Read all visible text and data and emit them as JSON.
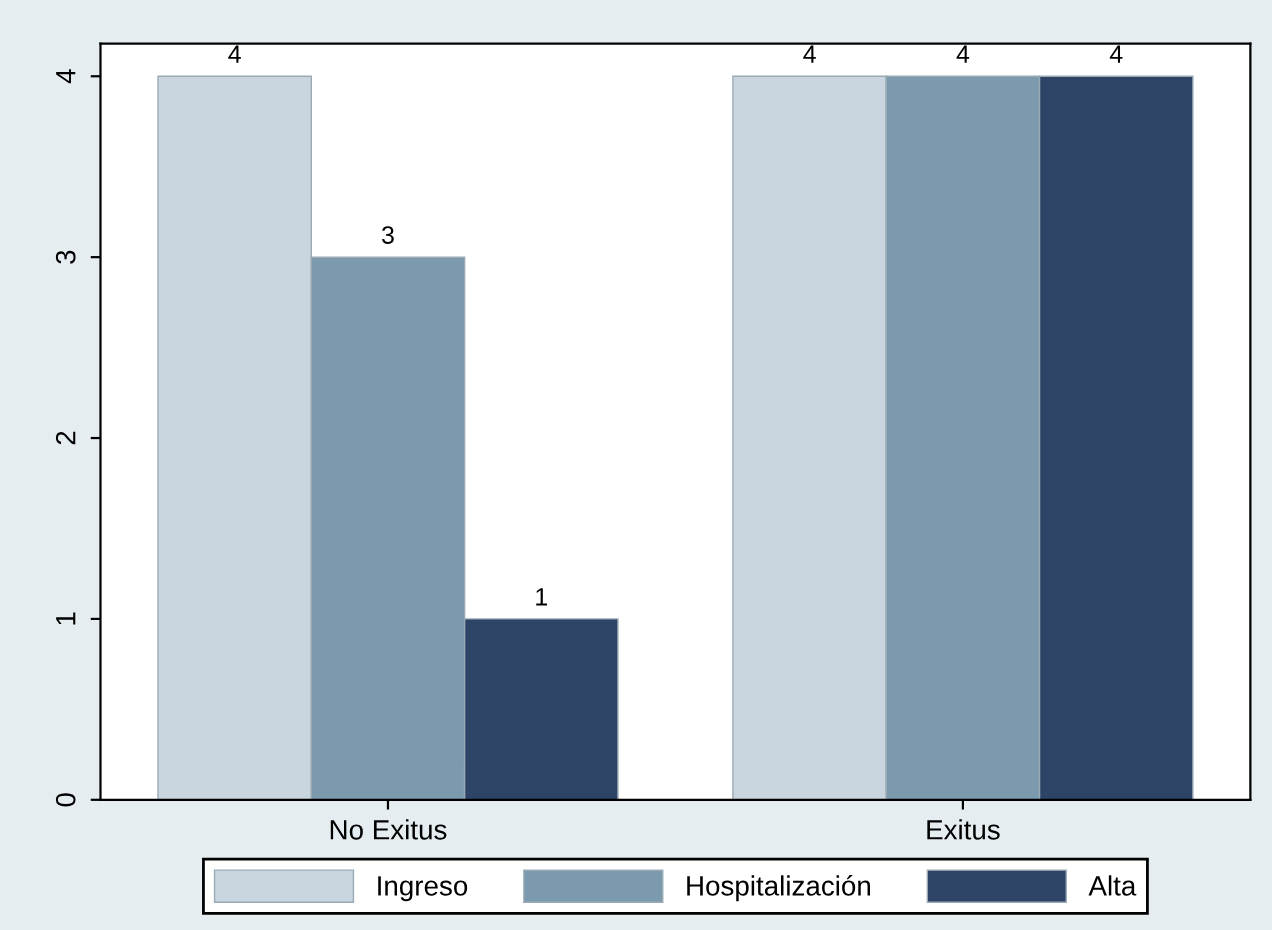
{
  "chart_data": {
    "type": "bar",
    "categories": [
      "No Exitus",
      "Exitus"
    ],
    "series": [
      {
        "name": "Ingreso",
        "color": "#c9d6df",
        "values": [
          4,
          4
        ]
      },
      {
        "name": "Hospitalización",
        "color": "#7b9aae",
        "values": [
          3,
          4
        ]
      },
      {
        "name": "Alta",
        "color": "#2d4466",
        "values": [
          1,
          4
        ]
      }
    ],
    "ylim": [
      0,
      4.18
    ],
    "yticks": [
      0,
      1,
      2,
      3,
      4
    ],
    "data_labels": true,
    "legend": "bottom",
    "grid": false
  }
}
